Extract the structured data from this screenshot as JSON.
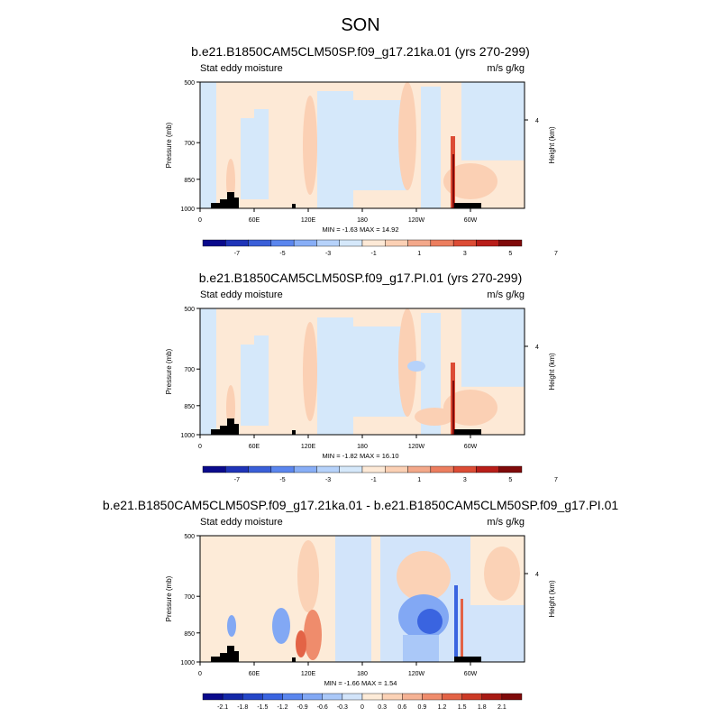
{
  "page": {
    "title": "SON"
  },
  "colors": {
    "land": "#000000",
    "axis": "#000000",
    "background": "#ffffff"
  },
  "chart_data": [
    {
      "type": "contour",
      "title": "b.e21.B1850CAM5CLM50SP.f09_g17.21ka.01 (yrs 270-299)",
      "left_string": "Stat eddy moisture",
      "right_string": "m/s g/kg",
      "ylabel": "Pressure (mb)",
      "ylabel_right": "Height (km)",
      "x_ticks": [
        "0",
        "60E",
        "120E",
        "180",
        "120W",
        "60W"
      ],
      "y_ticks": [
        "500",
        "700",
        "850",
        "1000"
      ],
      "y_ticks_right": [
        "4"
      ],
      "stats": "MIN = -1.63 MAX = 14.92",
      "colorbar": {
        "labels": [
          "-7",
          "-5",
          "-3",
          "-1",
          "1",
          "3",
          "5",
          "7"
        ],
        "colors": [
          "#0a0a8c",
          "#1f34b8",
          "#3a5fd8",
          "#5b86ee",
          "#88aef6",
          "#b6d2fa",
          "#d5e8fa",
          "#fde9d6",
          "#fbd0b4",
          "#f3a88a",
          "#ec7e5f",
          "#dc4c35",
          "#b81e19",
          "#7f0a0a"
        ]
      }
    },
    {
      "type": "contour",
      "title": "b.e21.B1850CAM5CLM50SP.f09_g17.PI.01 (yrs 270-299)",
      "left_string": "Stat eddy moisture",
      "right_string": "m/s g/kg",
      "ylabel": "Pressure (mb)",
      "ylabel_right": "Height (km)",
      "x_ticks": [
        "0",
        "60E",
        "120E",
        "180",
        "120W",
        "60W"
      ],
      "y_ticks": [
        "500",
        "700",
        "850",
        "1000"
      ],
      "y_ticks_right": [
        "4"
      ],
      "stats": "MIN = -1.82 MAX = 16.10",
      "colorbar": {
        "labels": [
          "-7",
          "-5",
          "-3",
          "-1",
          "1",
          "3",
          "5",
          "7"
        ],
        "colors": [
          "#0a0a8c",
          "#1f34b8",
          "#3a5fd8",
          "#5b86ee",
          "#88aef6",
          "#b6d2fa",
          "#d5e8fa",
          "#fde9d6",
          "#fbd0b4",
          "#f3a88a",
          "#ec7e5f",
          "#dc4c35",
          "#b81e19",
          "#7f0a0a"
        ]
      }
    },
    {
      "type": "contour",
      "title": "b.e21.B1850CAM5CLM50SP.f09_g17.21ka.01 - b.e21.B1850CAM5CLM50SP.f09_g17.PI.01",
      "left_string": "Stat eddy moisture",
      "right_string": "m/s g/kg",
      "ylabel": "Pressure (mb)",
      "ylabel_right": "Height (km)",
      "x_ticks": [
        "0",
        "60E",
        "120E",
        "180",
        "120W",
        "60W"
      ],
      "y_ticks": [
        "500",
        "700",
        "850",
        "1000"
      ],
      "y_ticks_right": [
        "4"
      ],
      "stats": "MIN = -1.66 MAX = 1.54",
      "colorbar": {
        "labels": [
          "-2.1",
          "-1.8",
          "-1.5",
          "-1.2",
          "-0.9",
          "-0.6",
          "-0.3",
          "0",
          "0.3",
          "0.6",
          "0.9",
          "1.2",
          "1.5",
          "1.8",
          "2.1"
        ],
        "colors": [
          "#0a0a8c",
          "#1428a8",
          "#2446c8",
          "#3a64e0",
          "#5a86ee",
          "#82a8f4",
          "#aac8f8",
          "#d2e4fa",
          "#fdebd8",
          "#fbd2b6",
          "#f5b294",
          "#ef8c6c",
          "#e36346",
          "#cc3a26",
          "#a81a14",
          "#7f0a0a"
        ]
      }
    }
  ]
}
